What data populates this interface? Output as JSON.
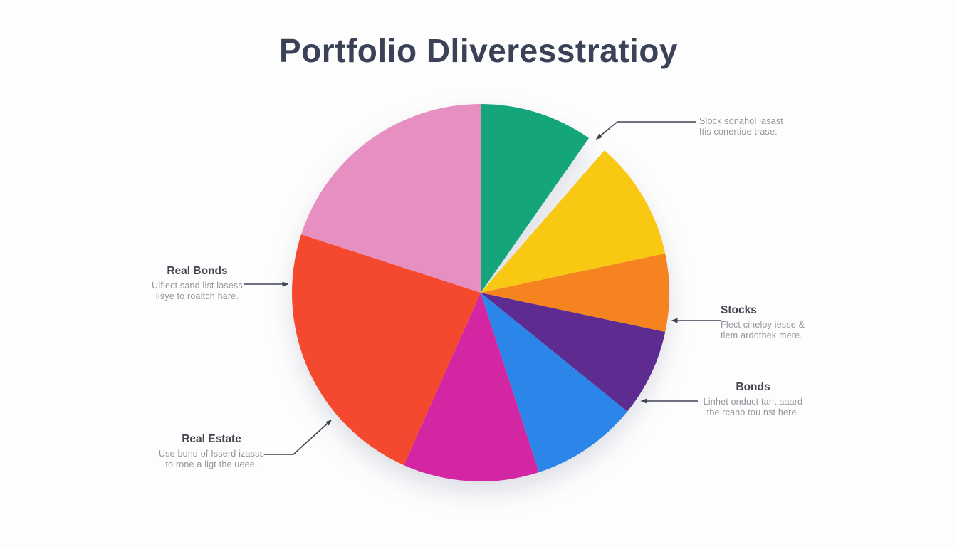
{
  "title": "Portfolio Dliveresstratioy",
  "chart_data": {
    "type": "pie",
    "title": "Portfolio Dliveresstratioy",
    "legend": "none",
    "angle_unit": "degrees_clockwise_from_top",
    "slices": [
      {
        "name": "teal-segment",
        "color": "#14A57B",
        "degrees": 35,
        "share_pct": 9.7,
        "gap": false
      },
      {
        "name": "gap-wedge",
        "color": "#FDFDFD",
        "degrees": 6,
        "share_pct": 1.7,
        "gap": true
      },
      {
        "name": "yellow-segment",
        "color": "#F9C813",
        "degrees": 37,
        "share_pct": 10.3,
        "gap": false
      },
      {
        "name": "orange-segment",
        "color": "#F5831F",
        "degrees": 24,
        "share_pct": 6.7,
        "gap": false
      },
      {
        "name": "purple-segment",
        "color": "#5E2C90",
        "degrees": 27,
        "share_pct": 7.5,
        "gap": false
      },
      {
        "name": "blue-segment",
        "color": "#2C86E9",
        "degrees": 33,
        "share_pct": 9.2,
        "gap": false
      },
      {
        "name": "magenta-segment",
        "color": "#D226A3",
        "degrees": 42,
        "share_pct": 11.7,
        "gap": false
      },
      {
        "name": "red-segment",
        "color": "#F4492F",
        "degrees": 84,
        "share_pct": 23.3,
        "gap": false
      },
      {
        "name": "pink-segment",
        "color": "#E78FC0",
        "degrees": 72,
        "share_pct": 20.0,
        "gap": false
      }
    ]
  },
  "annotations": {
    "stock_callout": {
      "lines": [
        "Slock sonahol lasast",
        "Itis conertiue trase."
      ]
    },
    "stocks": {
      "heading": "Stocks",
      "lines": [
        "Flect cineloy iesse &",
        "tlem ardothek mere."
      ]
    },
    "bonds": {
      "heading": "Bonds",
      "lines": [
        "Linhet onduct tant aaard",
        "the rcano tou nst here."
      ]
    },
    "real_bonds": {
      "heading": "Real Bonds",
      "lines": [
        "Ulfiect sand list lasess",
        "lisye to roaltch hare."
      ]
    },
    "real_estate": {
      "heading": "Real Estate",
      "lines": [
        "Use bond of Isserd izasss",
        "to rone a ligt the ueee."
      ]
    }
  },
  "colors": {
    "background": "#FDFDFD",
    "title_text": "#3B4157",
    "annotation_heading": "#43444F",
    "annotation_subtext": "#94949C",
    "leader_line": "#3E4454"
  }
}
